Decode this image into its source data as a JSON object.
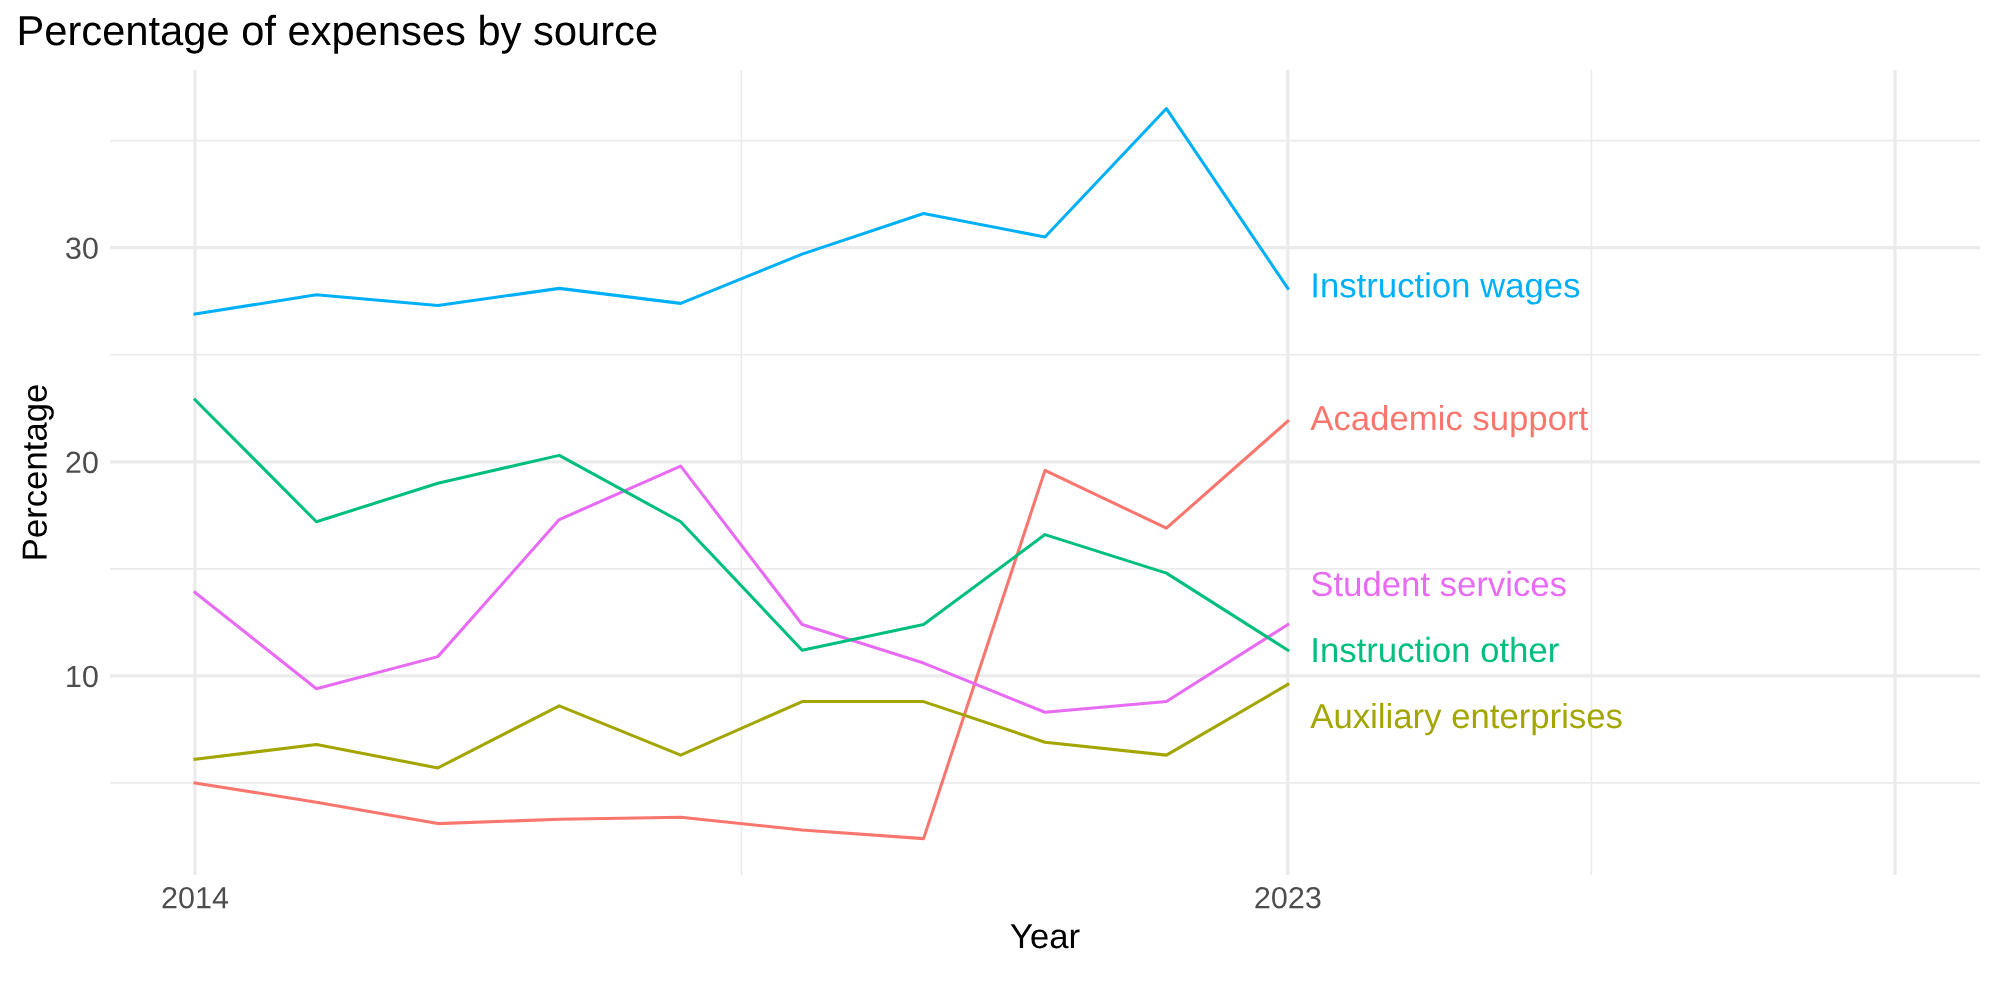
{
  "chart_data": {
    "type": "line",
    "title": "Percentage of expenses by source",
    "xlabel": "Year",
    "ylabel": "Percentage",
    "x": [
      2014,
      2015,
      2016,
      2017,
      2018,
      2019,
      2020,
      2021,
      2022,
      2023
    ],
    "series": [
      {
        "name": "Instruction wages",
        "color": "#00b0f6",
        "values": [
          26.9,
          27.8,
          27.3,
          28.1,
          27.4,
          29.7,
          31.6,
          30.5,
          36.5,
          28.1
        ]
      },
      {
        "name": "Academic support",
        "color": "#f8766d",
        "values": [
          5.0,
          4.1,
          3.1,
          3.3,
          3.4,
          2.8,
          2.4,
          19.6,
          16.9,
          21.9
        ]
      },
      {
        "name": "Student services",
        "color": "#e76bf3",
        "values": [
          13.9,
          9.4,
          10.9,
          17.3,
          19.8,
          12.4,
          10.6,
          8.3,
          8.8,
          12.4
        ]
      },
      {
        "name": "Instruction other",
        "color": "#00bf7d",
        "values": [
          22.9,
          17.2,
          19.0,
          20.3,
          17.2,
          11.2,
          12.4,
          16.6,
          14.8,
          11.2
        ]
      },
      {
        "name": "Auxiliary enterprises",
        "color": "#a3a500",
        "values": [
          6.1,
          6.8,
          5.7,
          8.6,
          6.3,
          8.8,
          8.8,
          6.9,
          6.3,
          9.6
        ]
      }
    ],
    "xlim": [
      2013.3,
      2028.7
    ],
    "xticks": [
      2014,
      2023,
      {
        "value": 2028,
        "label": null
      }
    ],
    "ylim": [
      0.7,
      38.3
    ],
    "yticks": [
      10,
      20,
      30
    ],
    "grid": true,
    "legend": false,
    "marker": "none",
    "line_style": "solid"
  }
}
